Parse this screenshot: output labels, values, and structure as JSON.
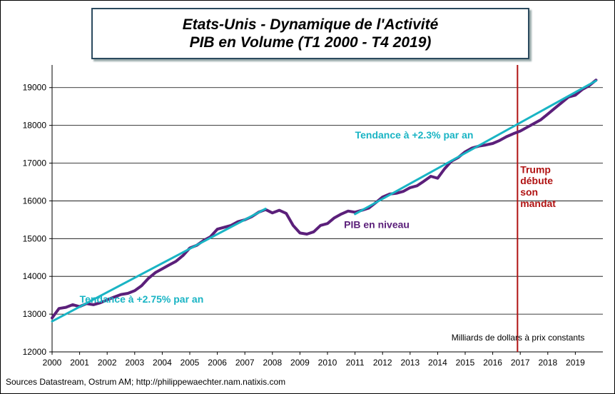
{
  "title": {
    "line1": "Etats-Unis - Dynamique de l'Activité",
    "line2": "PIB  en Volume (T1 2000 - T4 2019)"
  },
  "source": "Sources Datastream, Ostrum AM; http://philippewaechter.nam.natixis.com",
  "chart_data": {
    "type": "line",
    "title": "Etats-Unis - Dynamique de l'Activité / PIB en Volume (T1 2000 - T4 2019)",
    "xlabel": "",
    "ylabel": "",
    "units_note": "Milliards de dollars à prix constants",
    "xlim": [
      2000,
      2020
    ],
    "ylim": [
      12000,
      19600
    ],
    "y_ticks": [
      12000,
      13000,
      14000,
      15000,
      16000,
      17000,
      18000,
      19000
    ],
    "x_ticks": [
      "2000",
      "2001",
      "2002",
      "2003",
      "2004",
      "2005",
      "2006",
      "2007",
      "2008",
      "2009",
      "2010",
      "2011",
      "2012",
      "2013",
      "2014",
      "2015",
      "2016",
      "2017",
      "2018",
      "2019"
    ],
    "grid": "horizontal",
    "colors": {
      "gdp": "#5b1f7a",
      "trend": "#19b4c4",
      "marker": "#b01313"
    },
    "series": [
      {
        "name": "PIB en niveau",
        "type": "line",
        "x": [
          2000.0,
          2000.25,
          2000.5,
          2000.75,
          2001.0,
          2001.25,
          2001.5,
          2001.75,
          2002.0,
          2002.25,
          2002.5,
          2002.75,
          2003.0,
          2003.25,
          2003.5,
          2003.75,
          2004.0,
          2004.25,
          2004.5,
          2004.75,
          2005.0,
          2005.25,
          2005.5,
          2005.75,
          2006.0,
          2006.25,
          2006.5,
          2006.75,
          2007.0,
          2007.25,
          2007.5,
          2007.75,
          2008.0,
          2008.25,
          2008.5,
          2008.75,
          2009.0,
          2009.25,
          2009.5,
          2009.75,
          2010.0,
          2010.25,
          2010.5,
          2010.75,
          2011.0,
          2011.25,
          2011.5,
          2011.75,
          2012.0,
          2012.25,
          2012.5,
          2012.75,
          2013.0,
          2013.25,
          2013.5,
          2013.75,
          2014.0,
          2014.25,
          2014.5,
          2014.75,
          2015.0,
          2015.25,
          2015.5,
          2015.75,
          2016.0,
          2016.25,
          2016.5,
          2016.75,
          2017.0,
          2017.25,
          2017.5,
          2017.75,
          2018.0,
          2018.25,
          2018.5,
          2018.75,
          2019.0,
          2019.25,
          2019.5,
          2019.75
        ],
        "values": [
          12900,
          13150,
          13180,
          13250,
          13200,
          13280,
          13250,
          13300,
          13380,
          13450,
          13520,
          13550,
          13620,
          13750,
          13950,
          14100,
          14200,
          14300,
          14400,
          14550,
          14750,
          14820,
          14950,
          15050,
          15250,
          15300,
          15350,
          15450,
          15500,
          15580,
          15700,
          15770,
          15680,
          15750,
          15670,
          15350,
          15150,
          15120,
          15180,
          15350,
          15400,
          15550,
          15650,
          15730,
          15700,
          15750,
          15810,
          15950,
          16100,
          16180,
          16200,
          16250,
          16350,
          16400,
          16520,
          16650,
          16600,
          16850,
          17050,
          17150,
          17300,
          17400,
          17450,
          17480,
          17520,
          17600,
          17700,
          17780,
          17850,
          17950,
          18050,
          18150,
          18300,
          18450,
          18600,
          18750,
          18800,
          18950,
          19050,
          19200
        ]
      },
      {
        "name": "Tendance à +2.75% par an",
        "type": "trend",
        "x": [
          2000.0,
          2007.75
        ],
        "values": [
          12810,
          15790
        ]
      },
      {
        "name": "Tendance à +2.3% par an",
        "type": "trend",
        "x": [
          2011.0,
          2019.75
        ],
        "values": [
          15650,
          19180
        ]
      }
    ],
    "annotations": [
      {
        "text": "Tendance à +2.75% par an",
        "style": "teal",
        "x": 2001.0,
        "y": 13300
      },
      {
        "text": "Tendance à +2.3% par an",
        "style": "teal",
        "x": 2011.0,
        "y": 17650
      },
      {
        "text": "PIB en niveau",
        "style": "purple",
        "x": 2010.6,
        "y": 15280
      },
      {
        "text": "Trump",
        "style": "red",
        "x": 2017.0,
        "y": 16740
      },
      {
        "text": "débute",
        "style": "red",
        "x": 2017.0,
        "y": 16440
      },
      {
        "text": "son",
        "style": "red",
        "x": 2017.0,
        "y": 16140
      },
      {
        "text": "mandat",
        "style": "red",
        "x": 2017.0,
        "y": 15840
      },
      {
        "text": "Milliards de dollars à prix constants",
        "style": "unit",
        "x": 2014.5,
        "y": 12300
      }
    ],
    "vertical_marker": {
      "x": 2016.9
    }
  }
}
